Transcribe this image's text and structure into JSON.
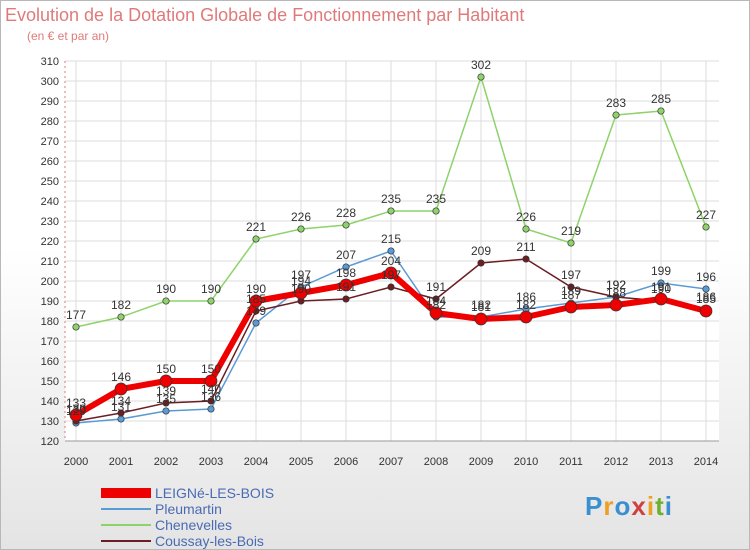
{
  "title": "Evolution de la Dotation Globale de Fonctionnement par Habitant",
  "subtitle": "(en € et par an)",
  "logo_text": "Proxiti",
  "chart_data": {
    "type": "line",
    "title": "Evolution de la Dotation Globale de Fonctionnement par Habitant",
    "subtitle": "(en € et par an)",
    "x": [
      "2000",
      "2001",
      "2002",
      "2003",
      "2004",
      "2005",
      "2006",
      "2007",
      "2008",
      "2009",
      "2010",
      "2011",
      "2012",
      "2013",
      "2014"
    ],
    "ylim": [
      120,
      310
    ],
    "yticks": [
      120,
      130,
      140,
      150,
      160,
      170,
      180,
      190,
      200,
      210,
      220,
      230,
      240,
      250,
      260,
      270,
      280,
      290,
      300,
      310
    ],
    "grid": true,
    "legend_position": "bottom-left",
    "series": [
      {
        "name": "LEIGNé-LES-BOIS",
        "color": "#ee0000",
        "width": 6,
        "values": [
          133,
          146,
          150,
          150,
          190,
          194,
          198,
          204,
          184,
          181,
          182,
          187,
          188,
          191,
          185
        ]
      },
      {
        "name": "Pleumartin",
        "color": "#5b9bd5",
        "width": 1.5,
        "values": [
          129,
          131,
          135,
          136,
          179,
          197,
          207,
          215,
          182,
          182,
          186,
          189,
          192,
          199,
          196
        ]
      },
      {
        "name": "Chenevelles",
        "color": "#8ed36a",
        "width": 1.5,
        "values": [
          177,
          182,
          190,
          190,
          221,
          226,
          228,
          235,
          235,
          302,
          226,
          219,
          283,
          285,
          227
        ]
      },
      {
        "name": "Coussay-les-Bois",
        "color": "#6b1e24",
        "width": 1.5,
        "values": [
          130,
          134,
          139,
          140,
          185,
          190,
          191,
          197,
          191,
          209,
          211,
          197,
          192,
          190,
          186
        ]
      }
    ]
  }
}
